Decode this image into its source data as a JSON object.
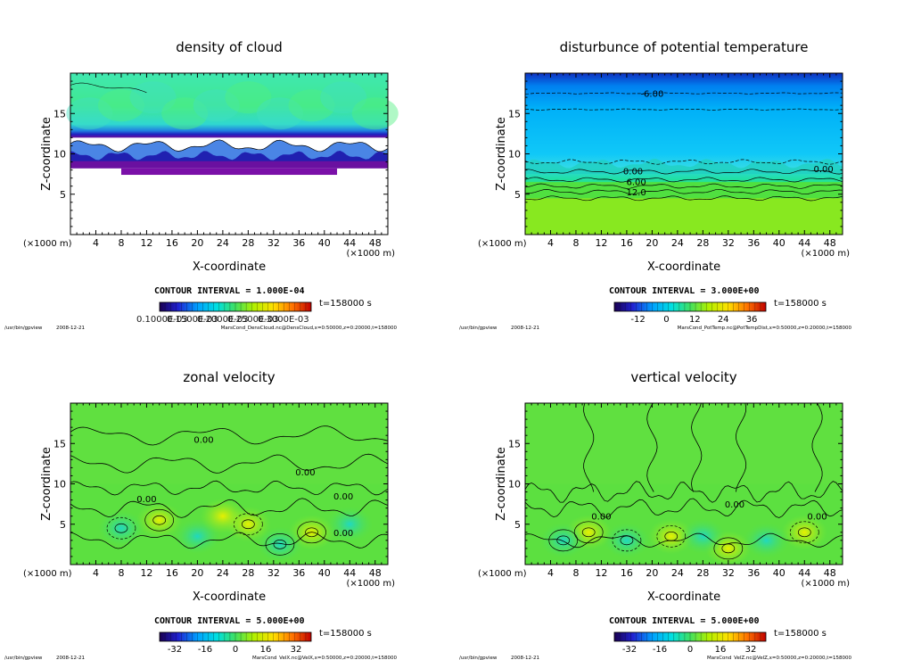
{
  "figure": {
    "program_path": "/usr/bin/gpview",
    "date": "2008-12-21"
  },
  "chart_data": [
    {
      "type": "heatmap",
      "title": "density of cloud",
      "xlabel": "X-coordinate",
      "ylabel": "Z-coordinate",
      "x_unit": "(×1000 m)",
      "y_unit": "(×1000 m)",
      "xlim": [
        0,
        50
      ],
      "ylim": [
        0,
        20
      ],
      "x_ticks": [
        4,
        8,
        12,
        16,
        20,
        24,
        28,
        32,
        36,
        40,
        44,
        48
      ],
      "y_ticks": [
        5,
        10,
        15
      ],
      "contour_interval": "CONTOUR INTERVAL = 1.000E-04",
      "time": "t=158000 s",
      "colorbar_labels": [
        "0.1000E-03",
        "0.1500E-03",
        "0.2000E-03",
        "0.2500E-03",
        "0.3000E-03"
      ],
      "colorbar_overlap_text": "0.10000.6000.1.2000.1.6500.2800.2300.3000e-03",
      "colorbar_range": [
        5e-05,
        0.00035
      ],
      "colormap": "rainbow",
      "contour_labels": [],
      "source_info": "MarsCond_DensCloud.nc@DensCloud,x=0:50000,z=0:20000,t=158000",
      "field_description": "cloud layer between z=7 and z=11, densest purple band near z=8"
    },
    {
      "type": "heatmap",
      "title": "disturbunce of potential temperature",
      "xlabel": "X-coordinate",
      "ylabel": "Z-coordinate",
      "x_unit": "(×1000 m)",
      "y_unit": "(×1000 m)",
      "xlim": [
        0,
        50
      ],
      "ylim": [
        0,
        20
      ],
      "x_ticks": [
        4,
        8,
        12,
        16,
        20,
        24,
        28,
        32,
        36,
        40,
        44,
        48
      ],
      "y_ticks": [
        5,
        10,
        15
      ],
      "contour_interval": "CONTOUR INTERVAL = 3.000E+00",
      "time": "t=158000 s",
      "colorbar_labels": [
        "-12",
        "0",
        "12",
        "24",
        "36"
      ],
      "colorbar_ticks": [
        -12,
        0,
        12,
        24,
        36
      ],
      "colorbar_range": [
        -22,
        42
      ],
      "colormap": "rainbow",
      "contour_labels": [
        "-6.00",
        "0.00",
        "6.00",
        "12.0",
        "0.00"
      ],
      "source_info": "MarsCond_PotTemp.nc@PotTempDist,x=0:50000,z=0:20000,t=158000"
    },
    {
      "type": "heatmap",
      "title": "zonal velocity",
      "xlabel": "X-coordinate",
      "ylabel": "Z-coordinate",
      "x_unit": "(×1000 m)",
      "y_unit": "(×1000 m)",
      "xlim": [
        0,
        50
      ],
      "ylim": [
        0,
        20
      ],
      "x_ticks": [
        4,
        8,
        12,
        16,
        20,
        24,
        28,
        32,
        36,
        40,
        44,
        48
      ],
      "y_ticks": [
        5,
        10,
        15
      ],
      "contour_interval": "CONTOUR INTERVAL = 5.000E+00",
      "time": "t=158000 s",
      "colorbar_labels": [
        "-32",
        "-16",
        "0",
        "16",
        "32"
      ],
      "colorbar_ticks": [
        -32,
        -16,
        0,
        16,
        32
      ],
      "colorbar_range": [
        -40,
        40
      ],
      "colormap": "rainbow",
      "contour_labels": [
        "0.00",
        "0.00",
        "0.00",
        "0.00",
        "0.00"
      ],
      "source_info": "MarsCond_VelX.nc@VelX,x=0:50000,z=0:20000,t=158000"
    },
    {
      "type": "heatmap",
      "title": "vertical velocity",
      "xlabel": "X-coordinate",
      "ylabel": "Z-coordinate",
      "x_unit": "(×1000 m)",
      "y_unit": "(×1000 m)",
      "xlim": [
        0,
        50
      ],
      "ylim": [
        0,
        20
      ],
      "x_ticks": [
        4,
        8,
        12,
        16,
        20,
        24,
        28,
        32,
        36,
        40,
        44,
        48
      ],
      "y_ticks": [
        5,
        10,
        15
      ],
      "contour_interval": "CONTOUR INTERVAL = 5.000E+00",
      "time": "t=158000 s",
      "colorbar_labels": [
        "-32",
        "-16",
        "0",
        "16",
        "32"
      ],
      "colorbar_ticks": [
        -32,
        -16,
        0,
        16,
        32
      ],
      "colorbar_range": [
        -40,
        40
      ],
      "colormap": "rainbow",
      "contour_labels": [
        "0.00",
        "0.00",
        "0.00"
      ],
      "source_info": "MarsCond_VelZ.nc@VelZ,x=0:50000,z=0:20000,t=158000"
    }
  ]
}
